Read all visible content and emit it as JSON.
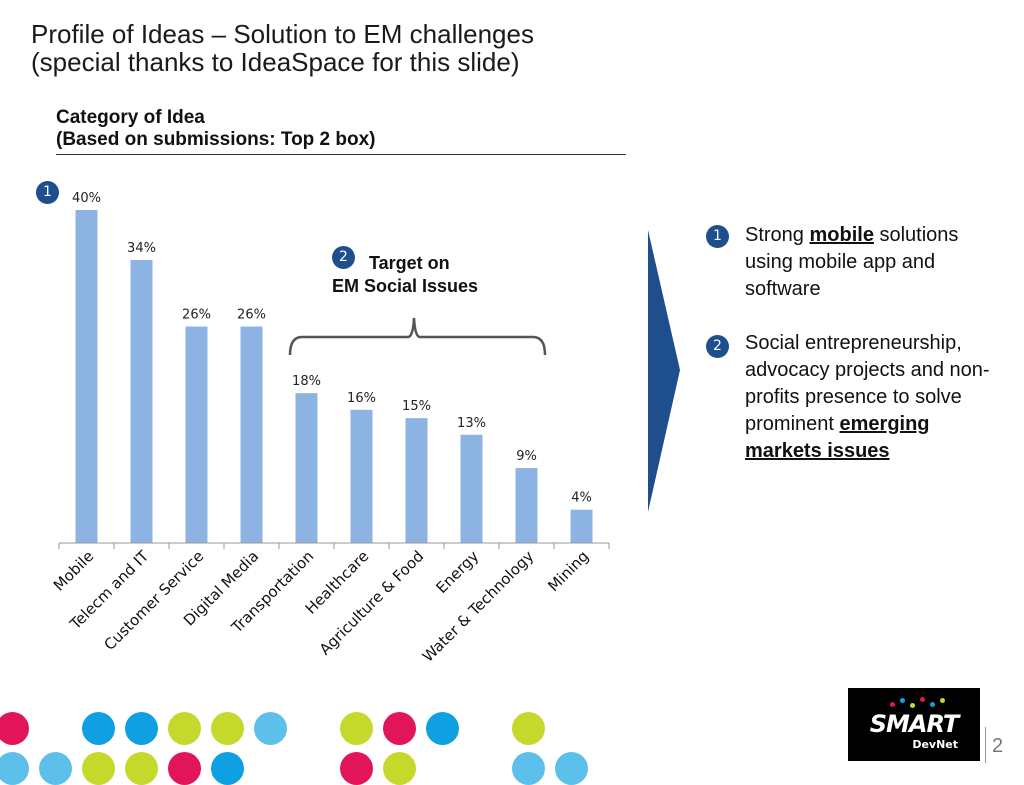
{
  "slide": {
    "title_line1": "Profile of Ideas – Solution to EM challenges",
    "title_line2": "(special thanks to IdeaSpace for this slide)",
    "subtitle_line1": "Category of Idea",
    "subtitle_line2": "(Based on submissions: Top 2 box)",
    "page_number": "2"
  },
  "chart_data": {
    "type": "bar",
    "categories": [
      "Mobile",
      "Telecm and IT",
      "Customer Service",
      "Digital Media",
      "Transportation",
      "Healthcare",
      "Agriculture & Food",
      "Energy",
      "Water & Technology",
      "Mining"
    ],
    "values": [
      40,
      34,
      26,
      26,
      18,
      16,
      15,
      13,
      9,
      4
    ],
    "data_labels": [
      "40%",
      "34%",
      "26%",
      "26%",
      "18%",
      "16%",
      "15%",
      "13%",
      "9%",
      "4%"
    ],
    "title": "",
    "xlabel": "",
    "ylabel": "",
    "ylim": [
      0,
      40
    ],
    "bar_color": "#8db3e2",
    "grid": false
  },
  "callouts": {
    "badge1": "1",
    "badge2": "2",
    "target_line1": "Target on",
    "target_line2": "EM Social Issues"
  },
  "key_points": [
    {
      "number": "1",
      "pre": "Strong ",
      "bold": "mobile",
      "post": " solutions using mobile app and software"
    },
    {
      "number": "2",
      "pre": "Social entrepreneurship, advocacy projects and non-profits presence to solve prominent ",
      "bold": "emerging markets issues",
      "post": ""
    }
  ],
  "logo": {
    "name": "SMART",
    "sub": "DevNet"
  },
  "colors": {
    "accent": "#1f4e8c",
    "bar": "#8db3e2",
    "arrow": "#1f4e8c"
  },
  "decor_dots": {
    "colors": [
      "#e2145a",
      "#ffffff",
      "#0ea0e0",
      "#0ea0e0",
      "#c5d82c",
      "#c5d82c",
      "#5cc0ea",
      "#ffffff",
      "#c5d82c",
      "#e2145a",
      "#0ea0e0",
      "#ffffff",
      "#c5d82c",
      "#ffffff"
    ]
  }
}
